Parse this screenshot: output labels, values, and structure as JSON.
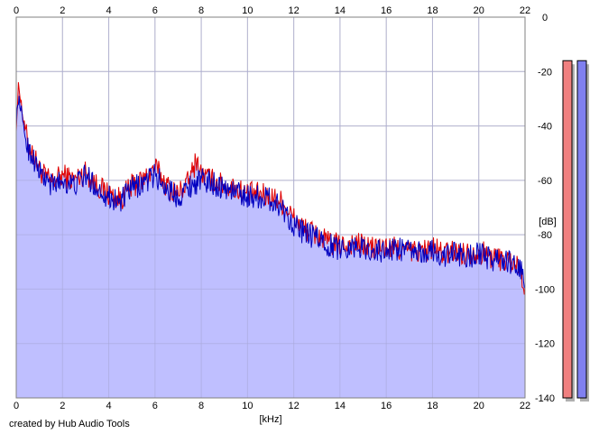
{
  "credit": "created by Hub Audio Tools",
  "chart_data": {
    "type": "line",
    "xlabel": "[kHz]",
    "ylabel": "[dB]",
    "xlim": [
      0,
      22
    ],
    "ylim": [
      -140,
      0
    ],
    "x_ticks": [
      "0",
      "2",
      "4",
      "6",
      "8",
      "10",
      "12",
      "14",
      "16",
      "18",
      "20",
      "22"
    ],
    "y_ticks": [
      "0",
      "-20",
      "-40",
      "-60",
      "-80",
      "-100",
      "-120",
      "-140"
    ],
    "grid": true,
    "series": [
      {
        "color": "#e00000",
        "x": [
          0,
          0.1,
          0.2,
          0.3,
          0.5,
          0.7,
          1,
          1.5,
          2,
          2.5,
          3,
          3.5,
          4,
          4.5,
          5,
          5.5,
          6,
          6.5,
          7,
          7.5,
          7.8,
          8,
          8.5,
          9,
          9.5,
          10,
          10.5,
          11,
          11.5,
          12,
          12.5,
          13,
          13.5,
          14,
          14.5,
          15,
          15.5,
          16,
          16.5,
          17,
          17.5,
          18,
          18.5,
          19,
          19.5,
          20,
          20.5,
          21,
          21.5,
          21.8,
          22
        ],
        "values": [
          -40,
          -25,
          -30,
          -38,
          -46,
          -50,
          -56,
          -61,
          -58,
          -60,
          -57,
          -62,
          -65,
          -67,
          -62,
          -60,
          -55,
          -62,
          -65,
          -60,
          -52,
          -58,
          -60,
          -62,
          -63,
          -65,
          -65,
          -66,
          -68,
          -74,
          -78,
          -80,
          -83,
          -84,
          -83,
          -84,
          -85,
          -85,
          -85,
          -86,
          -86,
          -85,
          -87,
          -86,
          -87,
          -86,
          -88,
          -89,
          -90,
          -92,
          -100
        ]
      },
      {
        "color": "#0000c0",
        "x": [
          0,
          0.1,
          0.2,
          0.3,
          0.5,
          0.7,
          1,
          1.5,
          2,
          2.5,
          3,
          3.5,
          4,
          4.5,
          5,
          5.5,
          6,
          6.5,
          7,
          7.5,
          8,
          8.5,
          9,
          9.5,
          10,
          10.5,
          11,
          11.5,
          12,
          12.5,
          13,
          13.5,
          14,
          14.5,
          15,
          15.5,
          16,
          16.5,
          17,
          17.5,
          18,
          18.5,
          19,
          19.5,
          20,
          20.5,
          21,
          21.5,
          21.8,
          22
        ],
        "values": [
          -38,
          -30,
          -33,
          -40,
          -48,
          -51,
          -57,
          -62,
          -60,
          -62,
          -58,
          -63,
          -66,
          -68,
          -63,
          -61,
          -58,
          -63,
          -66,
          -62,
          -60,
          -61,
          -63,
          -64,
          -66,
          -66,
          -67,
          -70,
          -76,
          -80,
          -81,
          -84,
          -85,
          -84,
          -85,
          -86,
          -86,
          -85,
          -86,
          -87,
          -86,
          -88,
          -87,
          -88,
          -87,
          -89,
          -89,
          -91,
          -93,
          -98
        ]
      }
    ],
    "level_meters": [
      {
        "color": "#f08080",
        "value": -16
      },
      {
        "color": "#8080f0",
        "value": -16
      }
    ]
  }
}
